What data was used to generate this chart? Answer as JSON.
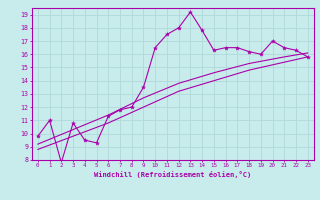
{
  "bg_color": "#c8ecec",
  "grid_color": "#b0d8d8",
  "line_color": "#aa00aa",
  "text_color": "#aa00aa",
  "xlabel": "Windchill (Refroidissement éolien,°C)",
  "xlim": [
    -0.5,
    23.5
  ],
  "ylim": [
    8,
    19.5
  ],
  "xticks": [
    0,
    1,
    2,
    3,
    4,
    5,
    6,
    7,
    8,
    9,
    10,
    11,
    12,
    13,
    14,
    15,
    16,
    17,
    18,
    19,
    20,
    21,
    22,
    23
  ],
  "yticks": [
    8,
    9,
    10,
    11,
    12,
    13,
    14,
    15,
    16,
    17,
    18,
    19
  ],
  "line1_x": [
    0,
    1,
    2,
    3,
    4,
    5,
    6,
    7,
    8,
    9,
    10,
    11,
    12,
    13,
    14,
    15,
    16,
    17,
    18,
    19,
    20,
    21,
    22,
    23
  ],
  "line1_y": [
    9.8,
    11.0,
    7.8,
    10.8,
    9.5,
    9.3,
    11.3,
    11.8,
    12.0,
    13.5,
    16.5,
    17.5,
    18.0,
    19.2,
    17.8,
    16.3,
    16.5,
    16.5,
    16.2,
    16.0,
    17.0,
    16.5,
    16.3,
    15.8
  ],
  "line2_x": [
    0,
    3,
    6,
    9,
    12,
    15,
    18,
    21,
    23
  ],
  "line2_y": [
    8.8,
    9.8,
    10.8,
    12.0,
    13.2,
    14.0,
    14.8,
    15.4,
    15.8
  ],
  "line3_x": [
    0,
    3,
    6,
    9,
    12,
    15,
    18,
    21,
    23
  ],
  "line3_y": [
    9.2,
    10.3,
    11.4,
    12.7,
    13.8,
    14.6,
    15.3,
    15.8,
    16.1
  ]
}
